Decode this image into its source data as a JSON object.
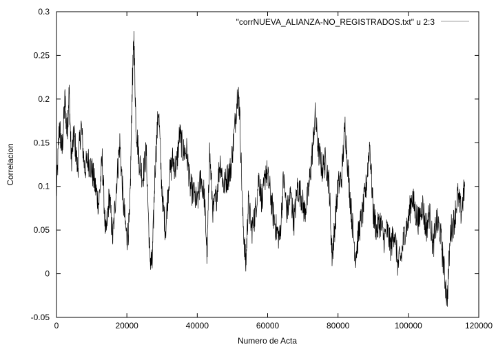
{
  "chart_data": {
    "type": "line",
    "title": "",
    "xlabel": "Numero de Acta",
    "ylabel": "Correlacion",
    "xlim": [
      0,
      120000
    ],
    "ylim": [
      -0.05,
      0.3
    ],
    "x_ticks": [
      0,
      20000,
      40000,
      60000,
      80000,
      100000,
      120000
    ],
    "x_tick_labels": [
      "0",
      "20000",
      "40000",
      "60000",
      "80000",
      "100000",
      "120000"
    ],
    "y_ticks": [
      -0.05,
      0,
      0.05,
      0.1,
      0.15,
      0.2,
      0.25,
      0.3
    ],
    "y_tick_labels": [
      "-0.05",
      "0",
      "0.05",
      "0.1",
      "0.15",
      "0.2",
      "0.25",
      "0.3"
    ],
    "grid": false,
    "legend_position": "top-right",
    "series": [
      {
        "name": "\"corrNUEVA_ALIANZA-NO_REGISTRADOS.txt\" u 2:3",
        "color": "#000000",
        "legend_color": "#a0a0a0",
        "x": [
          0,
          800,
          1600,
          2400,
          3000,
          3600,
          4200,
          5000,
          6000,
          7000,
          8000,
          9000,
          10000,
          11000,
          12000,
          13000,
          14000,
          15000,
          16000,
          17000,
          18000,
          19000,
          20000,
          20800,
          21500,
          22000,
          22600,
          23500,
          24500,
          25500,
          26500,
          27200,
          28000,
          29000,
          30000,
          31000,
          32000,
          33000,
          34000,
          35000,
          36000,
          37000,
          38000,
          39000,
          40000,
          41000,
          42000,
          42800,
          43500,
          44500,
          45500,
          46500,
          47500,
          48500,
          49500,
          50500,
          51500,
          52000,
          53000,
          53800,
          54500,
          55500,
          56500,
          57500,
          58500,
          59500,
          60500,
          61500,
          62500,
          63500,
          64500,
          65500,
          66500,
          67500,
          68500,
          69500,
          70500,
          71500,
          72500,
          73500,
          74500,
          75500,
          76500,
          77500,
          78300,
          79000,
          80000,
          81000,
          82000,
          83000,
          84000,
          85000,
          86000,
          87000,
          88000,
          89000,
          90000,
          91000,
          92000,
          93000,
          94000,
          95000,
          96000,
          97000,
          98000,
          99000,
          100000,
          101000,
          102000,
          103000,
          104000,
          105000,
          106000,
          107000,
          108000,
          109000,
          110000,
          111000,
          112000,
          113000,
          114000,
          115000,
          116000
        ],
        "y": [
          0.09,
          0.17,
          0.14,
          0.2,
          0.16,
          0.21,
          0.13,
          0.16,
          0.12,
          0.17,
          0.12,
          0.13,
          0.12,
          0.1,
          0.08,
          0.13,
          0.04,
          0.09,
          0.04,
          0.1,
          0.15,
          0.08,
          0.04,
          0.06,
          0.21,
          0.27,
          0.17,
          0.13,
          0.11,
          0.14,
          0.02,
          0.01,
          0.12,
          0.19,
          0.09,
          0.05,
          0.11,
          0.13,
          0.12,
          0.16,
          0.14,
          0.14,
          0.1,
          0.09,
          0.08,
          0.11,
          0.09,
          0.02,
          0.14,
          0.07,
          0.09,
          0.13,
          0.1,
          0.11,
          0.12,
          0.16,
          0.21,
          0.19,
          0.06,
          0.01,
          0.08,
          0.05,
          0.07,
          0.11,
          0.08,
          0.12,
          0.1,
          0.07,
          0.05,
          0.04,
          0.11,
          0.07,
          0.09,
          0.06,
          0.1,
          0.09,
          0.07,
          0.09,
          0.13,
          0.18,
          0.14,
          0.12,
          0.13,
          0.1,
          0.02,
          0.05,
          0.1,
          0.11,
          0.17,
          0.11,
          0.06,
          0.02,
          0.05,
          0.07,
          0.1,
          0.15,
          0.07,
          0.05,
          0.06,
          0.04,
          0.05,
          0.03,
          0.05,
          0.01,
          0.02,
          0.05,
          0.06,
          0.09,
          0.07,
          0.06,
          0.08,
          0.05,
          0.07,
          0.03,
          0.06,
          0.05,
          0.01,
          -0.03,
          0.05,
          0.06,
          0.09,
          0.07,
          0.1
        ]
      }
    ]
  }
}
